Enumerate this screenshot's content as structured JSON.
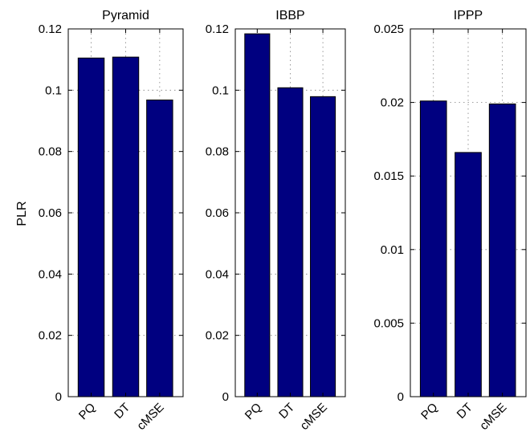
{
  "colors": {
    "bar_fill": "#000080",
    "bar_stroke": "#000000",
    "axis": "#000000",
    "grid": "#808080",
    "background": "#ffffff"
  },
  "ylabel": "PLR",
  "chart_data": [
    {
      "type": "bar",
      "title": "Pyramid",
      "categories": [
        "PQ",
        "DT",
        "cMSE"
      ],
      "values": [
        0.1105,
        0.1108,
        0.0968
      ],
      "ylim": [
        0,
        0.12
      ],
      "yticks": [
        0,
        0.02,
        0.04,
        0.06,
        0.08,
        0.1,
        0.12
      ],
      "ytick_labels": [
        "0",
        "0.02",
        "0.04",
        "0.06",
        "0.08",
        "0.1",
        "0.12"
      ],
      "ylabel": "PLR",
      "grid": true
    },
    {
      "type": "bar",
      "title": "IBBP",
      "categories": [
        "PQ",
        "DT",
        "cMSE"
      ],
      "values": [
        0.1184,
        0.1008,
        0.0979
      ],
      "ylim": [
        0,
        0.12
      ],
      "yticks": [
        0,
        0.02,
        0.04,
        0.06,
        0.08,
        0.1,
        0.12
      ],
      "ytick_labels": [
        "0",
        "0.02",
        "0.04",
        "0.06",
        "0.08",
        "0.1",
        "0.12"
      ],
      "ylabel": "",
      "grid": true
    },
    {
      "type": "bar",
      "title": "IPPP",
      "categories": [
        "PQ",
        "DT",
        "cMSE"
      ],
      "values": [
        0.0201,
        0.0166,
        0.0199
      ],
      "ylim": [
        0,
        0.025
      ],
      "yticks": [
        0,
        0.005,
        0.01,
        0.015,
        0.02,
        0.025
      ],
      "ytick_labels": [
        "0",
        "0.005",
        "0.01",
        "0.015",
        "0.02",
        "0.025"
      ],
      "ylabel": "",
      "grid": true
    }
  ]
}
